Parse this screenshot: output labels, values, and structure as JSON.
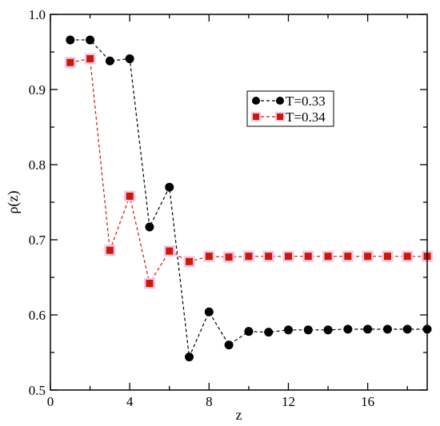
{
  "chart_data": {
    "type": "line",
    "xlabel": "z",
    "ylabel": "ρ(z)",
    "xlim": [
      0,
      19
    ],
    "ylim": [
      0.5,
      1.0
    ],
    "xticks": [
      0,
      4,
      8,
      12,
      16
    ],
    "yticks": [
      0.5,
      0.6,
      0.7,
      0.8,
      0.9,
      1.0
    ],
    "ytick_labels": [
      "0.5",
      "0.6",
      "0.7",
      "0.8",
      "0.9",
      "1.0"
    ],
    "grid": false,
    "legend_position": "top-right",
    "series": [
      {
        "name": "T=0.33",
        "color": "#000000",
        "marker": "circle",
        "line_style": "dashed",
        "x": [
          1,
          2,
          3,
          4,
          5,
          6,
          7,
          8,
          9,
          10,
          11,
          12,
          13,
          14,
          15,
          16,
          17,
          18,
          19
        ],
        "values": [
          0.966,
          0.966,
          0.938,
          0.941,
          0.717,
          0.77,
          0.544,
          0.604,
          0.56,
          0.578,
          0.577,
          0.58,
          0.58,
          0.58,
          0.581,
          0.581,
          0.581,
          0.581,
          0.581
        ]
      },
      {
        "name": "T=0.34",
        "color": "#cc1a00",
        "marker": "square",
        "line_style": "dashed",
        "x": [
          1,
          2,
          3,
          4,
          5,
          6,
          7,
          8,
          9,
          10,
          11,
          12,
          13,
          14,
          15,
          16,
          17,
          18,
          19
        ],
        "values": [
          0.936,
          0.941,
          0.686,
          0.758,
          0.642,
          0.685,
          0.671,
          0.678,
          0.677,
          0.678,
          0.678,
          0.678,
          0.678,
          0.678,
          0.678,
          0.678,
          0.678,
          0.678,
          0.678
        ]
      }
    ]
  }
}
